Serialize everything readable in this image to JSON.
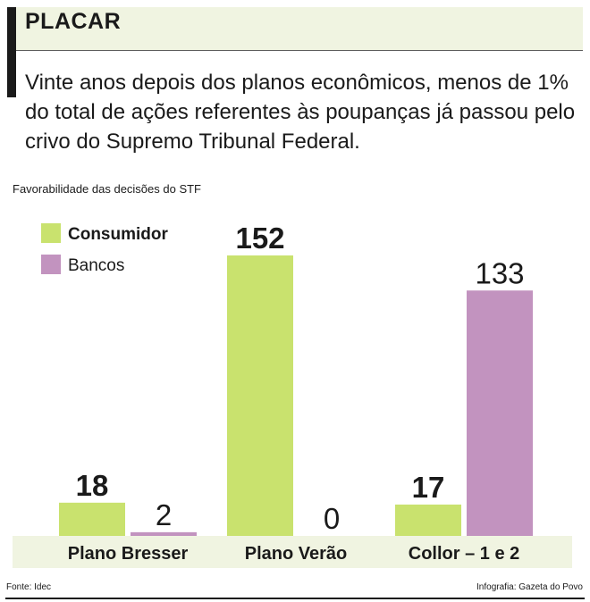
{
  "header": {
    "title": "PLACAR"
  },
  "lead": "Vinte anos depois dos planos econômicos, menos de 1% do total de ações referentes às poupanças já passou pelo crivo do Supremo Tribunal Federal.",
  "chart_data": {
    "type": "bar",
    "title": "Favorabilidade das decisões do STF",
    "categories": [
      "Plano Bresser",
      "Plano Verão",
      "Collor – 1 e 2"
    ],
    "series": [
      {
        "name": "Consumidor",
        "values": [
          18,
          152,
          17
        ],
        "color": "#c9e26e"
      },
      {
        "name": "Bancos",
        "values": [
          2,
          0,
          133
        ],
        "color": "#c293bf"
      }
    ],
    "xlabel": "",
    "ylabel": "",
    "ylim": [
      0,
      152
    ],
    "grid": false,
    "legend": "top-left",
    "category_band_color": "#f0f4e1"
  },
  "footer": {
    "source": "Fonte: Idec",
    "credit": "Infografia: Gazeta do Povo"
  }
}
